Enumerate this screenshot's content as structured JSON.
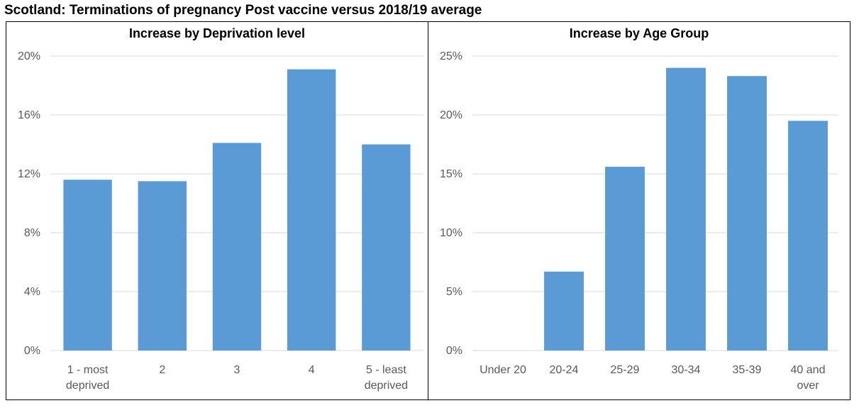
{
  "title": "Scotland: Terminations of pregnancy Post vaccine versus 2018/19 average",
  "colors": {
    "bar": "#5b9bd5",
    "grid": "#d9d9d9",
    "text": "#595959"
  },
  "chart_data": [
    {
      "type": "bar",
      "title": "Increase by Deprivation level",
      "categories": [
        [
          "1 - most",
          "deprived"
        ],
        [
          "2"
        ],
        [
          "3"
        ],
        [
          "4"
        ],
        [
          "5 - least",
          "deprived"
        ]
      ],
      "values": [
        11.6,
        11.5,
        14.1,
        19.1,
        14.0
      ],
      "unit": "%",
      "ylim": [
        0,
        20
      ],
      "yticks": [
        0,
        4,
        8,
        12,
        16,
        20
      ],
      "ytick_labels": [
        "0%",
        "4%",
        "8%",
        "12%",
        "16%",
        "20%"
      ],
      "grid": true,
      "legend": "none"
    },
    {
      "type": "bar",
      "title": "Increase by Age Group",
      "categories": [
        [
          "Under 20"
        ],
        [
          "20-24"
        ],
        [
          "25-29"
        ],
        [
          "30-34"
        ],
        [
          "35-39"
        ],
        [
          "40 and",
          "over"
        ]
      ],
      "values": [
        0,
        6.7,
        15.6,
        24.0,
        23.3,
        19.5
      ],
      "unit": "%",
      "ylim": [
        0,
        25
      ],
      "yticks": [
        0,
        5,
        10,
        15,
        20,
        25
      ],
      "ytick_labels": [
        "0%",
        "5%",
        "10%",
        "15%",
        "20%",
        "25%"
      ],
      "grid": true,
      "legend": "none"
    }
  ]
}
